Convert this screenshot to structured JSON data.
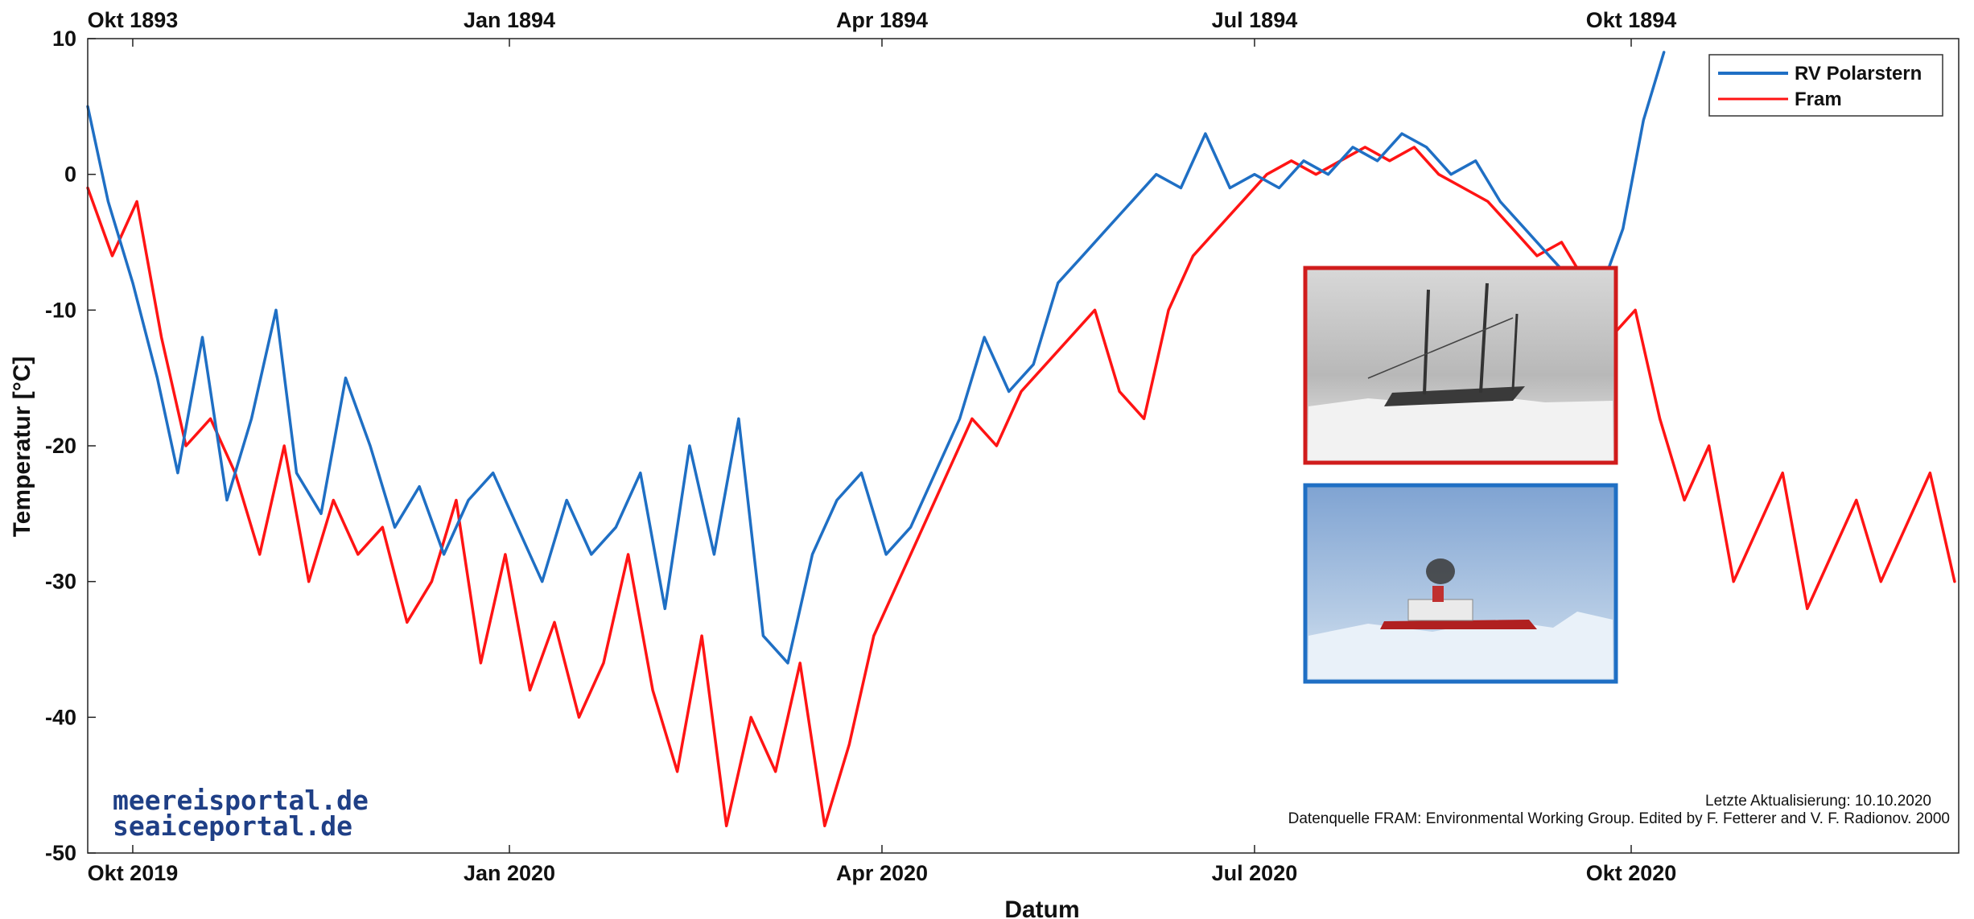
{
  "chart_data": {
    "type": "line",
    "title": "",
    "xlabel": "Datum",
    "ylabel": "Temperatur [°C]",
    "ylim": [
      -50,
      10
    ],
    "yticks": [
      10,
      0,
      -10,
      -20,
      -30,
      -40,
      -50
    ],
    "x_range": [
      "2019-09-20",
      "2020-12-20"
    ],
    "x_ticks_bottom": [
      {
        "date": "2019-10-01",
        "label": "Okt 2019"
      },
      {
        "date": "2020-01-01",
        "label": "Jan 2020"
      },
      {
        "date": "2020-04-01",
        "label": "Apr 2020"
      },
      {
        "date": "2020-07-01",
        "label": "Jul 2020"
      },
      {
        "date": "2020-10-01",
        "label": "Okt 2020"
      }
    ],
    "x_ticks_top": [
      "Okt 1893",
      "Jan 1894",
      "Apr 1894",
      "Jul 1894",
      "Okt 1894"
    ],
    "legend": {
      "position": "top-right"
    },
    "grid": false,
    "series": [
      {
        "name": "RV Polarstern",
        "color": "#1f6fc4",
        "x": [
          "2019-09-20",
          "2019-09-25",
          "2019-10-01",
          "2019-10-07",
          "2019-10-12",
          "2019-10-18",
          "2019-10-24",
          "2019-10-30",
          "2019-11-05",
          "2019-11-10",
          "2019-11-16",
          "2019-11-22",
          "2019-11-28",
          "2019-12-04",
          "2019-12-10",
          "2019-12-16",
          "2019-12-22",
          "2019-12-28",
          "2020-01-03",
          "2020-01-09",
          "2020-01-15",
          "2020-01-21",
          "2020-01-27",
          "2020-02-02",
          "2020-02-08",
          "2020-02-14",
          "2020-02-20",
          "2020-02-26",
          "2020-03-03",
          "2020-03-09",
          "2020-03-15",
          "2020-03-21",
          "2020-03-27",
          "2020-04-02",
          "2020-04-08",
          "2020-04-14",
          "2020-04-20",
          "2020-04-26",
          "2020-05-02",
          "2020-05-08",
          "2020-05-14",
          "2020-05-20",
          "2020-05-26",
          "2020-06-01",
          "2020-06-07",
          "2020-06-13",
          "2020-06-19",
          "2020-06-25",
          "2020-07-01",
          "2020-07-07",
          "2020-07-13",
          "2020-07-19",
          "2020-07-25",
          "2020-07-31",
          "2020-08-06",
          "2020-08-12",
          "2020-08-18",
          "2020-08-24",
          "2020-08-30",
          "2020-09-05",
          "2020-09-11",
          "2020-09-17",
          "2020-09-23",
          "2020-09-29",
          "2020-10-04",
          "2020-10-09"
        ],
        "y": [
          5,
          -2,
          -8,
          -15,
          -22,
          -12,
          -24,
          -18,
          -10,
          -22,
          -25,
          -15,
          -20,
          -26,
          -23,
          -28,
          -24,
          -22,
          -26,
          -30,
          -24,
          -28,
          -26,
          -22,
          -32,
          -20,
          -28,
          -18,
          -34,
          -36,
          -28,
          -24,
          -22,
          -28,
          -26,
          -22,
          -18,
          -12,
          -16,
          -14,
          -8,
          -6,
          -4,
          -2,
          0,
          -1,
          3,
          -1,
          0,
          -1,
          1,
          0,
          2,
          1,
          3,
          2,
          0,
          1,
          -2,
          -4,
          -6,
          -8,
          -9,
          -4,
          4,
          9
        ]
      },
      {
        "name": "Fram",
        "color": "#ff1414",
        "x": [
          "2019-09-20",
          "2019-09-26",
          "2019-10-02",
          "2019-10-08",
          "2019-10-14",
          "2019-10-20",
          "2019-10-26",
          "2019-11-01",
          "2019-11-07",
          "2019-11-13",
          "2019-11-19",
          "2019-11-25",
          "2019-12-01",
          "2019-12-07",
          "2019-12-13",
          "2019-12-19",
          "2019-12-25",
          "2019-12-31",
          "2020-01-06",
          "2020-01-12",
          "2020-01-18",
          "2020-01-24",
          "2020-01-30",
          "2020-02-05",
          "2020-02-11",
          "2020-02-17",
          "2020-02-23",
          "2020-02-29",
          "2020-03-06",
          "2020-03-12",
          "2020-03-18",
          "2020-03-24",
          "2020-03-30",
          "2020-04-05",
          "2020-04-11",
          "2020-04-17",
          "2020-04-23",
          "2020-04-29",
          "2020-05-05",
          "2020-05-11",
          "2020-05-17",
          "2020-05-23",
          "2020-05-29",
          "2020-06-04",
          "2020-06-10",
          "2020-06-16",
          "2020-06-22",
          "2020-06-28",
          "2020-07-04",
          "2020-07-10",
          "2020-07-16",
          "2020-07-22",
          "2020-07-28",
          "2020-08-03",
          "2020-08-09",
          "2020-08-15",
          "2020-08-21",
          "2020-08-27",
          "2020-09-02",
          "2020-09-08",
          "2020-09-14",
          "2020-09-20",
          "2020-09-26",
          "2020-10-02",
          "2020-10-08",
          "2020-10-14",
          "2020-10-20",
          "2020-10-26",
          "2020-11-01",
          "2020-11-07",
          "2020-11-13",
          "2020-11-19",
          "2020-11-25",
          "2020-12-01",
          "2020-12-07",
          "2020-12-13",
          "2020-12-19"
        ],
        "y": [
          -1,
          -6,
          -2,
          -12,
          -20,
          -18,
          -22,
          -28,
          -20,
          -30,
          -24,
          -28,
          -26,
          -33,
          -30,
          -24,
          -36,
          -28,
          -38,
          -33,
          -40,
          -36,
          -28,
          -38,
          -44,
          -34,
          -48,
          -40,
          -44,
          -36,
          -48,
          -42,
          -34,
          -30,
          -26,
          -22,
          -18,
          -20,
          -16,
          -14,
          -12,
          -10,
          -16,
          -18,
          -10,
          -6,
          -4,
          -2,
          0,
          1,
          0,
          1,
          2,
          1,
          2,
          0,
          -1,
          -2,
          -4,
          -6,
          -5,
          -8,
          -12,
          -10,
          -18,
          -24,
          -20,
          -30,
          -26,
          -22,
          -32,
          -28,
          -24,
          -30,
          -26,
          -22,
          -30
        ]
      }
    ]
  },
  "legend": {
    "items": [
      "RV Polarstern",
      "Fram"
    ]
  },
  "brand": {
    "line1": "meereisportal.de",
    "line2": "seaiceportal.de"
  },
  "credits": {
    "updated": "Letzte Aktualisierung: 10.10.2020",
    "source": "Datenquelle FRAM: Environmental Working Group. Edited by F. Fetterer and V. F. Radionov. 2000"
  }
}
